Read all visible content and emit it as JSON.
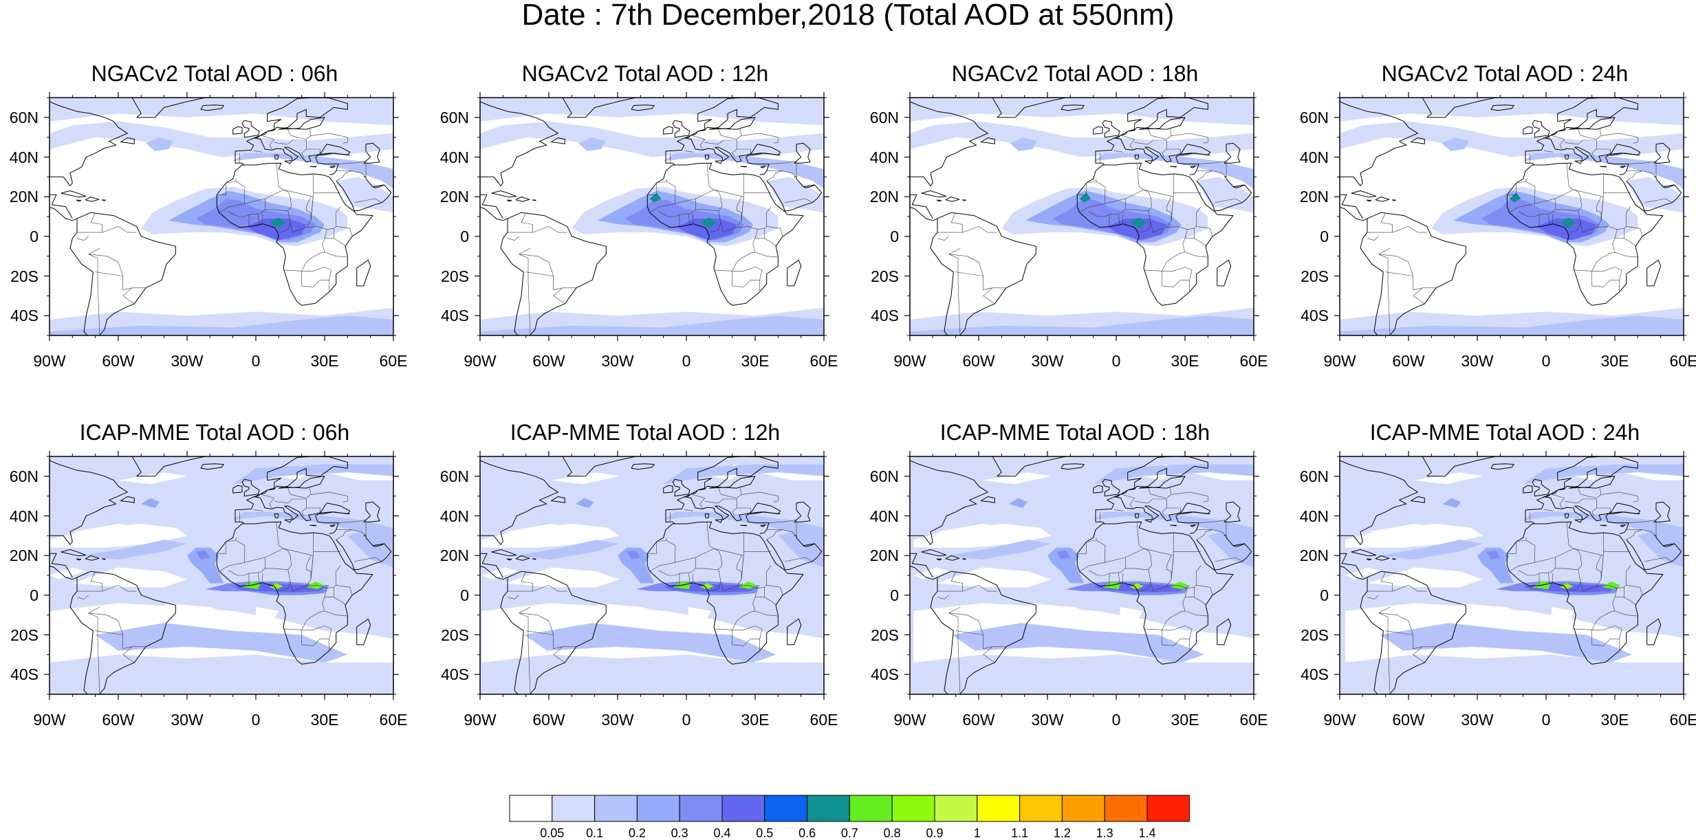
{
  "title": "Date : 7th December,2018 (Total AOD at 550nm)",
  "map": {
    "lon_range": [
      -90,
      60
    ],
    "lat_range": [
      -50,
      70
    ],
    "lat_ticks": [
      {
        "lat": 60,
        "label": "60N"
      },
      {
        "lat": 40,
        "label": "40N"
      },
      {
        "lat": 20,
        "label": "20N"
      },
      {
        "lat": 0,
        "label": "0"
      },
      {
        "lat": -20,
        "label": "20S"
      },
      {
        "lat": -40,
        "label": "40S"
      }
    ],
    "lon_ticks": [
      {
        "lon": -90,
        "label": "90W"
      },
      {
        "lon": -60,
        "label": "60W"
      },
      {
        "lon": -30,
        "label": "30W"
      },
      {
        "lon": 0,
        "label": "0"
      },
      {
        "lon": 30,
        "label": "30E"
      },
      {
        "lon": 60,
        "label": "60E"
      }
    ]
  },
  "panels": [
    {
      "title": "NGACv2 Total AOD : 06h",
      "model": "ngac",
      "hour": 6
    },
    {
      "title": "NGACv2 Total AOD : 12h",
      "model": "ngac",
      "hour": 12
    },
    {
      "title": "NGACv2 Total AOD : 18h",
      "model": "ngac",
      "hour": 18
    },
    {
      "title": "NGACv2 Total AOD : 24h",
      "model": "ngac",
      "hour": 24
    },
    {
      "title": "ICAP-MME Total AOD : 06h",
      "model": "icap",
      "hour": 6
    },
    {
      "title": "ICAP-MME Total AOD : 12h",
      "model": "icap",
      "hour": 12
    },
    {
      "title": "ICAP-MME Total AOD : 18h",
      "model": "icap",
      "hour": 18
    },
    {
      "title": "ICAP-MME Total AOD : 24h",
      "model": "icap",
      "hour": 24
    }
  ],
  "colorbar": {
    "levels": [
      "0.05",
      "0.1",
      "0.2",
      "0.3",
      "0.4",
      "0.5",
      "0.6",
      "0.7",
      "0.8",
      "0.9",
      "1",
      "1.1",
      "1.2",
      "1.3",
      "1.4"
    ],
    "colors": [
      "#ffffff",
      "#d4dcfb",
      "#b4c3fa",
      "#95abf9",
      "#7f8cf4",
      "#6366ee",
      "#0a64f0",
      "#0f9191",
      "#64ee22",
      "#8efa0b",
      "#c4fa45",
      "#ffff00",
      "#ffc800",
      "#ff9f00",
      "#ff7000",
      "#ff2000"
    ]
  },
  "features": {
    "background_color": "#d4dcfb",
    "coastline_color": "#000000"
  }
}
